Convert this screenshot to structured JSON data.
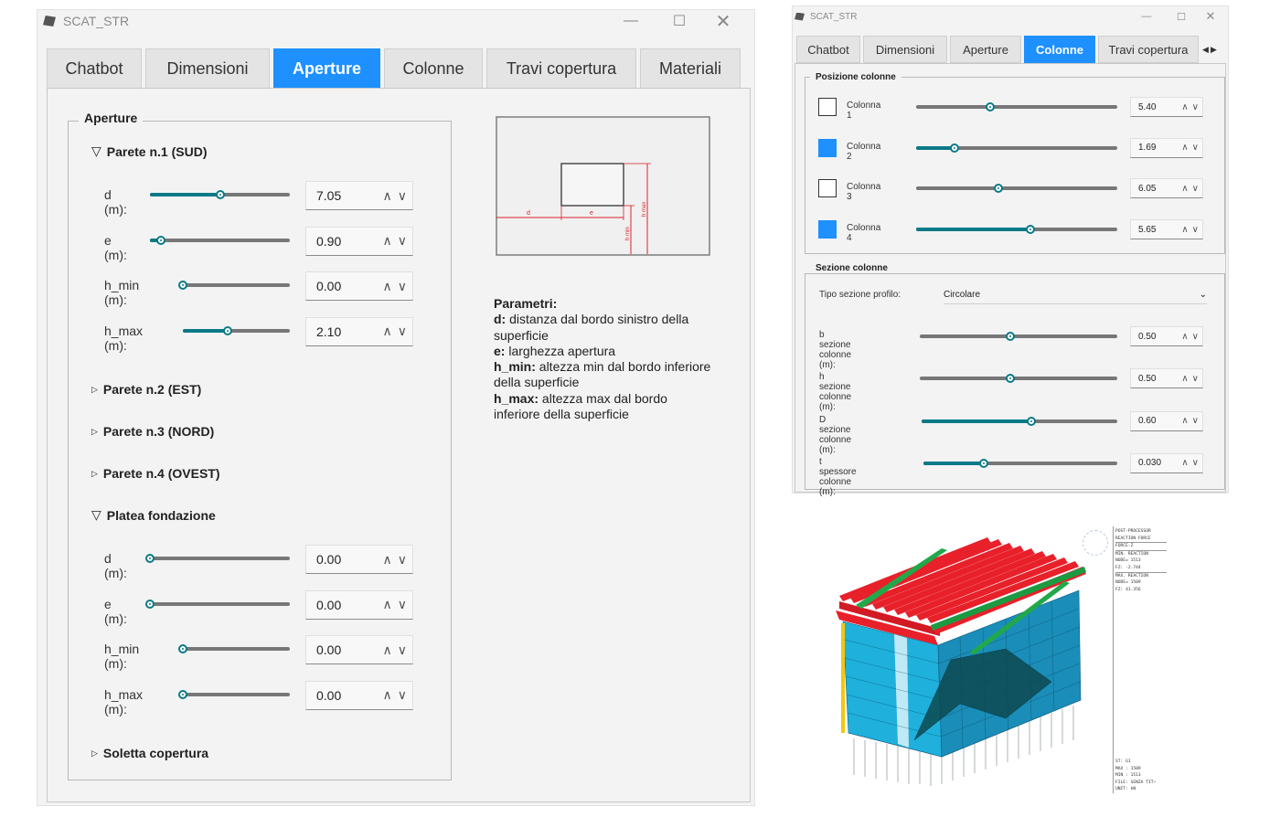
{
  "left_window": {
    "title": "SCAT_STR",
    "tabs": [
      {
        "label": "Chatbot"
      },
      {
        "label": "Dimensioni"
      },
      {
        "label": "Aperture",
        "active": true
      },
      {
        "label": "Colonne"
      },
      {
        "label": "Travi copertura"
      },
      {
        "label": "Materiali"
      }
    ],
    "group_title": "Aperture",
    "parete1": {
      "title": "Parete n.1 (SUD)",
      "rows": [
        {
          "label": "d (m):",
          "value": "7.05",
          "fraction": 0.5
        },
        {
          "label": "e (m):",
          "value": "0.90",
          "fraction": 0.08
        },
        {
          "label": "h_min (m):",
          "value": "0.00",
          "fraction": 0.0
        },
        {
          "label": "h_max (m):",
          "value": "2.10",
          "fraction": 0.42
        }
      ]
    },
    "parete2": {
      "title": "Parete n.2 (EST)"
    },
    "parete3": {
      "title": "Parete n.3 (NORD)"
    },
    "parete4": {
      "title": "Parete n.4 (OVEST)"
    },
    "platea": {
      "title": "Platea fondazione",
      "rows": [
        {
          "label": "d (m):",
          "value": "0.00",
          "fraction": 0.0
        },
        {
          "label": "e (m):",
          "value": "0.00",
          "fraction": 0.0
        },
        {
          "label": "h_min (m):",
          "value": "0.00",
          "fraction": 0.0
        },
        {
          "label": "h_max (m):",
          "value": "0.00",
          "fraction": 0.0
        }
      ]
    },
    "soletta": {
      "title": "Soletta copertura"
    },
    "diagram": {
      "label_d": "d",
      "label_e": "e",
      "label_hmin": "h min",
      "label_hmax": "h max"
    },
    "params": {
      "heading": "Parametri:",
      "d_key": "d:",
      "d_text": " distanza dal bordo sinistro della superficie",
      "e_key": "e:",
      "e_text": " larghezza apertura",
      "hmin_key": "h_min:",
      "hmin_text": " altezza min dal bordo inferiore della superficie",
      "hmax_key": "h_max:",
      "hmax_text": " altezza max dal bordo inferiore della superficie"
    }
  },
  "right_window": {
    "title": "SCAT_STR",
    "tabs": [
      {
        "label": "Chatbot"
      },
      {
        "label": "Dimensioni"
      },
      {
        "label": "Aperture"
      },
      {
        "label": "Colonne",
        "active": true
      },
      {
        "label": "Travi copertura"
      }
    ],
    "posizione": {
      "title": "Posizione colonne",
      "rows": [
        {
          "label": "Colonna 1",
          "checked": false,
          "value": "5.40",
          "fraction": 0.37
        },
        {
          "label": "Colonna 2",
          "checked": true,
          "value": "1.69",
          "fraction": 0.19
        },
        {
          "label": "Colonna 3",
          "checked": false,
          "value": "6.05",
          "fraction": 0.41
        },
        {
          "label": "Colonna 4",
          "checked": true,
          "value": "5.65",
          "fraction": 0.57
        }
      ]
    },
    "sezione": {
      "title": "Sezione colonne",
      "tipo_label": "Tipo sezione profilo:",
      "tipo_value": "Circolare",
      "rows": [
        {
          "label": "b sezione colonne (m):",
          "value": "0.50",
          "fraction": 0.46
        },
        {
          "label": "h sezione colonne (m):",
          "value": "0.50",
          "fraction": 0.46
        },
        {
          "label": "D sezione colonne (m):",
          "value": "0.60",
          "fraction": 0.56
        },
        {
          "label": "t spessore colonne (m):",
          "value": "0.030",
          "fraction": 0.31
        }
      ]
    }
  },
  "postproc": {
    "lines": [
      "POST-PROCESSOR",
      "REACTION FORCE",
      "FORCE-Z",
      "MIN. REACTION",
      "NODE= 1513",
      "FZ: -2.744",
      "MAX. REACTION",
      "NODE= 1509",
      "FZ: 41.356"
    ],
    "footer": [
      "ST: G1",
      "MAX : 1509",
      "MIN : 1513",
      "FILE: SENZA TIT~",
      "UNIT: kN"
    ]
  },
  "colors": {
    "accent": "#1e90ff",
    "slider_fill": "#0b7a88",
    "beam_red": "#e8202a",
    "beam_green": "#22a84a",
    "wall_cyan": "#17b5e0"
  }
}
